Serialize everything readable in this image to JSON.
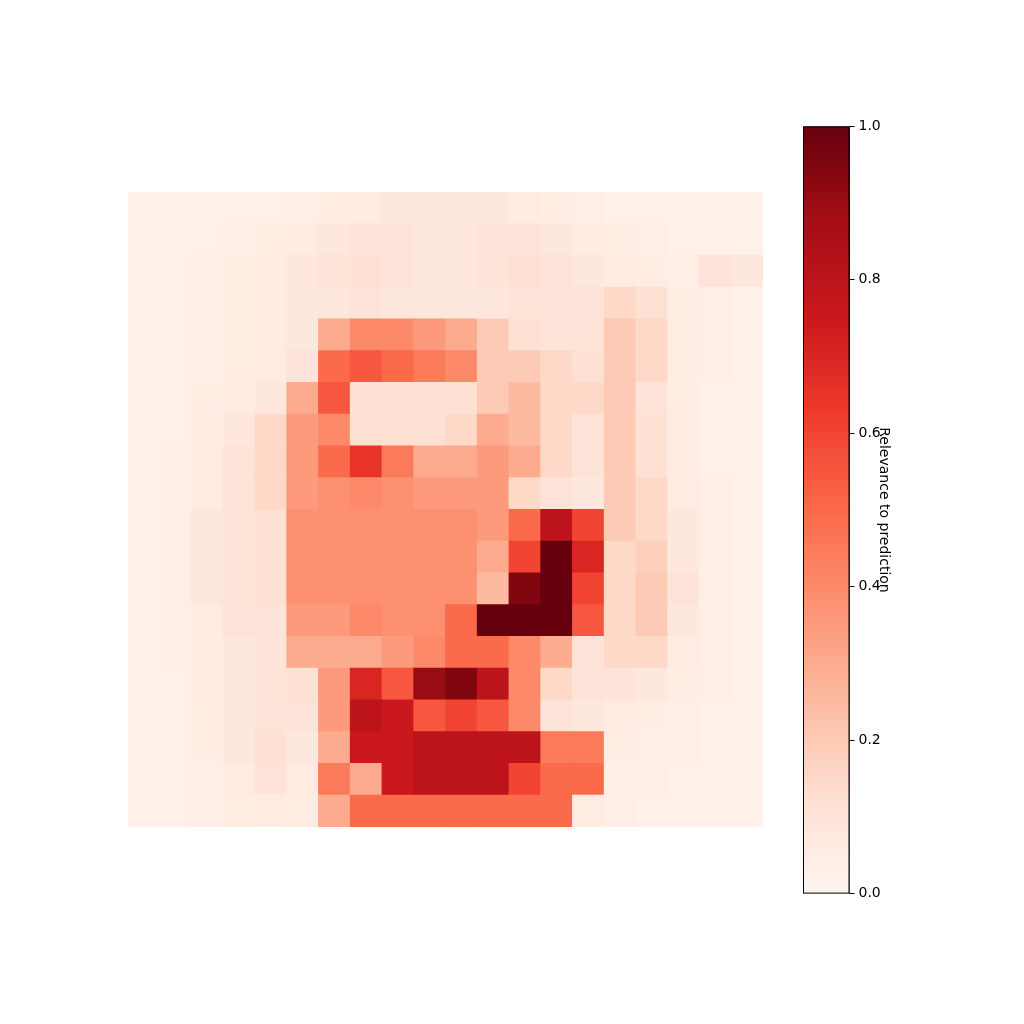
{
  "chart_data": {
    "type": "heatmap",
    "tick_labels": false,
    "cells": [
      [
        0.03,
        0.03,
        0.03,
        0.03,
        0.03,
        0.04,
        0.05,
        0.06,
        0.08,
        0.08,
        0.08,
        0.08,
        0.06,
        0.05,
        0.04,
        0.03,
        0.03,
        0.03,
        0.03,
        0.03
      ],
      [
        0.03,
        0.03,
        0.03,
        0.04,
        0.05,
        0.06,
        0.08,
        0.1,
        0.1,
        0.08,
        0.08,
        0.1,
        0.1,
        0.08,
        0.06,
        0.05,
        0.04,
        0.03,
        0.03,
        0.03
      ],
      [
        0.03,
        0.03,
        0.04,
        0.05,
        0.06,
        0.08,
        0.1,
        0.12,
        0.1,
        0.08,
        0.08,
        0.1,
        0.12,
        0.1,
        0.08,
        0.06,
        0.05,
        0.04,
        0.1,
        0.08
      ],
      [
        0.03,
        0.03,
        0.04,
        0.05,
        0.06,
        0.08,
        0.08,
        0.1,
        0.08,
        0.08,
        0.08,
        0.08,
        0.1,
        0.1,
        0.1,
        0.15,
        0.12,
        0.05,
        0.04,
        0.03
      ],
      [
        0.03,
        0.03,
        0.04,
        0.05,
        0.06,
        0.08,
        0.3,
        0.4,
        0.4,
        0.35,
        0.3,
        0.2,
        0.12,
        0.1,
        0.1,
        0.2,
        0.15,
        0.05,
        0.04,
        0.03
      ],
      [
        0.03,
        0.03,
        0.04,
        0.05,
        0.06,
        0.1,
        0.5,
        0.55,
        0.5,
        0.45,
        0.4,
        0.2,
        0.2,
        0.15,
        0.12,
        0.2,
        0.15,
        0.05,
        0.04,
        0.03
      ],
      [
        0.03,
        0.03,
        0.05,
        0.06,
        0.08,
        0.3,
        0.55,
        0.12,
        0.12,
        0.12,
        0.12,
        0.2,
        0.25,
        0.15,
        0.15,
        0.2,
        0.1,
        0.05,
        0.03,
        0.03
      ],
      [
        0.03,
        0.03,
        0.06,
        0.08,
        0.15,
        0.35,
        0.4,
        0.12,
        0.12,
        0.12,
        0.15,
        0.3,
        0.25,
        0.15,
        0.1,
        0.2,
        0.12,
        0.06,
        0.03,
        0.03
      ],
      [
        0.03,
        0.04,
        0.06,
        0.1,
        0.15,
        0.35,
        0.5,
        0.65,
        0.45,
        0.3,
        0.3,
        0.35,
        0.3,
        0.15,
        0.1,
        0.2,
        0.12,
        0.06,
        0.03,
        0.03
      ],
      [
        0.03,
        0.04,
        0.06,
        0.1,
        0.15,
        0.35,
        0.38,
        0.4,
        0.38,
        0.35,
        0.35,
        0.35,
        0.15,
        0.1,
        0.08,
        0.2,
        0.15,
        0.06,
        0.04,
        0.03
      ],
      [
        0.03,
        0.04,
        0.08,
        0.1,
        0.12,
        0.38,
        0.38,
        0.38,
        0.38,
        0.38,
        0.38,
        0.35,
        0.5,
        0.8,
        0.6,
        0.2,
        0.15,
        0.08,
        0.04,
        0.03
      ],
      [
        0.03,
        0.04,
        0.08,
        0.1,
        0.12,
        0.38,
        0.38,
        0.38,
        0.38,
        0.38,
        0.38,
        0.3,
        0.6,
        1.0,
        0.7,
        0.15,
        0.18,
        0.08,
        0.04,
        0.03
      ],
      [
        0.03,
        0.04,
        0.08,
        0.1,
        0.12,
        0.38,
        0.38,
        0.38,
        0.38,
        0.38,
        0.38,
        0.25,
        0.95,
        1.0,
        0.6,
        0.15,
        0.2,
        0.1,
        0.04,
        0.03
      ],
      [
        0.03,
        0.04,
        0.06,
        0.1,
        0.1,
        0.35,
        0.35,
        0.4,
        0.38,
        0.38,
        0.5,
        1.0,
        1.0,
        1.0,
        0.55,
        0.15,
        0.2,
        0.08,
        0.04,
        0.03
      ],
      [
        0.03,
        0.04,
        0.06,
        0.08,
        0.1,
        0.3,
        0.3,
        0.3,
        0.35,
        0.4,
        0.5,
        0.5,
        0.4,
        0.3,
        0.1,
        0.15,
        0.15,
        0.06,
        0.04,
        0.03
      ],
      [
        0.03,
        0.03,
        0.06,
        0.08,
        0.1,
        0.12,
        0.35,
        0.7,
        0.55,
        0.9,
        0.95,
        0.8,
        0.4,
        0.15,
        0.1,
        0.1,
        0.08,
        0.05,
        0.04,
        0.03
      ],
      [
        0.03,
        0.03,
        0.05,
        0.08,
        0.1,
        0.1,
        0.35,
        0.8,
        0.75,
        0.55,
        0.6,
        0.55,
        0.4,
        0.1,
        0.08,
        0.06,
        0.05,
        0.04,
        0.03,
        0.03
      ],
      [
        0.03,
        0.03,
        0.05,
        0.08,
        0.12,
        0.08,
        0.3,
        0.75,
        0.75,
        0.8,
        0.8,
        0.8,
        0.8,
        0.45,
        0.45,
        0.05,
        0.04,
        0.04,
        0.03,
        0.03
      ],
      [
        0.03,
        0.03,
        0.04,
        0.06,
        0.1,
        0.06,
        0.45,
        0.3,
        0.75,
        0.8,
        0.8,
        0.8,
        0.6,
        0.5,
        0.5,
        0.04,
        0.04,
        0.03,
        0.03,
        0.03
      ],
      [
        0.03,
        0.03,
        0.04,
        0.05,
        0.06,
        0.05,
        0.3,
        0.5,
        0.5,
        0.5,
        0.5,
        0.5,
        0.5,
        0.5,
        0.05,
        0.04,
        0.03,
        0.03,
        0.03,
        0.03
      ]
    ],
    "colorbar": {
      "label": "Relevance to prediction",
      "range": [
        0,
        1
      ],
      "ticks": [
        {
          "value": 0,
          "label": "0.0"
        },
        {
          "value": 0.2,
          "label": "0.2"
        },
        {
          "value": 0.4,
          "label": "0.4"
        },
        {
          "value": 0.6,
          "label": "0.6"
        },
        {
          "value": 0.8,
          "label": "0.8"
        },
        {
          "value": 1,
          "label": "1.0"
        }
      ]
    }
  }
}
